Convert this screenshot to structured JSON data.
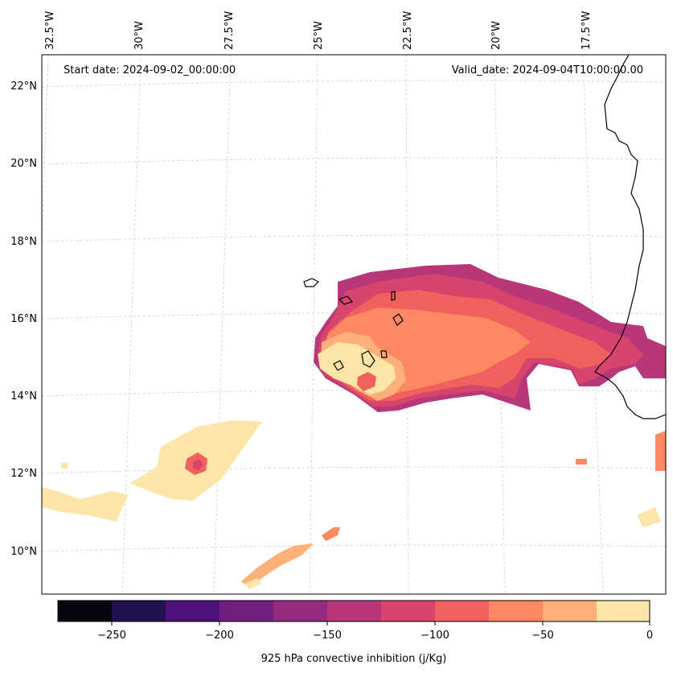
{
  "map": {
    "start_date_label": "Start date: 2024-09-02_00:00:00",
    "valid_date_label": "Valid_date: 2024-09-04T10:00:00.00",
    "lon_labels": [
      "32.5°W",
      "30°W",
      "27.5°W",
      "25°W",
      "22.5°W",
      "20°W",
      "17.5°W"
    ],
    "lat_labels": [
      "22°N",
      "20°N",
      "18°N",
      "16°N",
      "14°N",
      "12°N",
      "10°N"
    ]
  },
  "colorbar": {
    "title": "925 hPa convective inhibition (j/Kg)",
    "tick_labels": [
      "−250",
      "−200",
      "−150",
      "−100",
      "−50",
      "0"
    ],
    "colors": [
      "#05040f",
      "#221150",
      "#4f127b",
      "#721f81",
      "#952c80",
      "#b73779",
      "#d8456c",
      "#f1605d",
      "#fc8961",
      "#feb078",
      "#fde5a7"
    ]
  }
}
